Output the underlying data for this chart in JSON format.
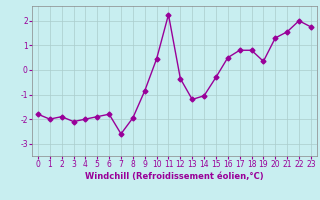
{
  "x": [
    0,
    1,
    2,
    3,
    4,
    5,
    6,
    7,
    8,
    9,
    10,
    11,
    12,
    13,
    14,
    15,
    16,
    17,
    18,
    19,
    20,
    21,
    22,
    23
  ],
  "y": [
    -1.8,
    -2.0,
    -1.9,
    -2.1,
    -2.0,
    -1.9,
    -1.8,
    -2.6,
    -1.95,
    -0.85,
    0.45,
    2.25,
    -0.35,
    -1.2,
    -1.05,
    -0.3,
    0.5,
    0.8,
    0.8,
    0.35,
    1.3,
    1.55,
    2.0,
    1.75
  ],
  "line_color": "#990099",
  "marker": "D",
  "marker_size": 2.5,
  "line_width": 1.0,
  "bg_color": "#c8eef0",
  "grid_color": "#aacccc",
  "xlabel": "Windchill (Refroidissement éolien,°C)",
  "xlabel_fontsize": 6,
  "tick_fontsize": 5.5,
  "ylim": [
    -3.5,
    2.6
  ],
  "xlim": [
    -0.5,
    23.5
  ],
  "yticks": [
    -3,
    -2,
    -1,
    0,
    1,
    2
  ],
  "xticks": [
    0,
    1,
    2,
    3,
    4,
    5,
    6,
    7,
    8,
    9,
    10,
    11,
    12,
    13,
    14,
    15,
    16,
    17,
    18,
    19,
    20,
    21,
    22,
    23
  ]
}
